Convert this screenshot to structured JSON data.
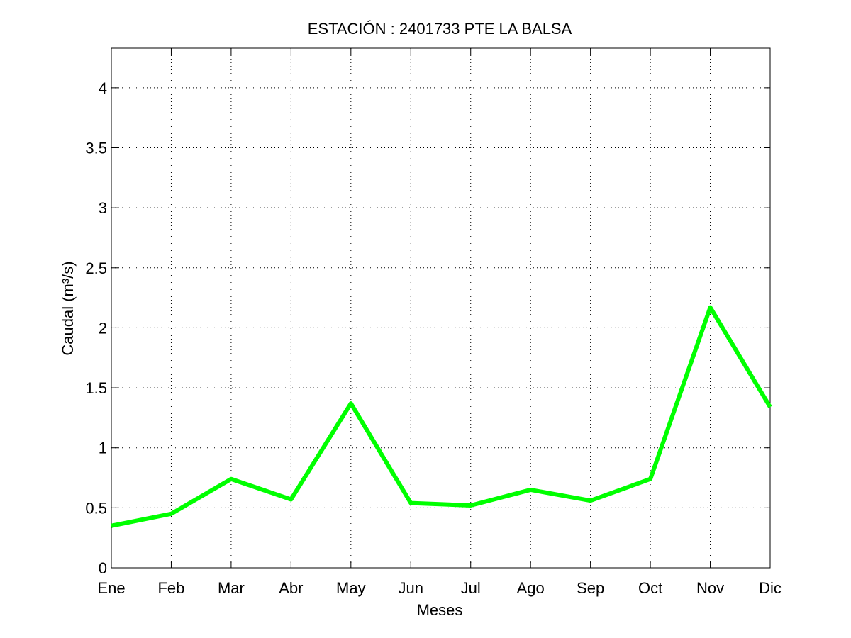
{
  "chart_data": {
    "type": "line",
    "title": "ESTACIÓN :  2401733  PTE LA BALSA",
    "xlabel": "Meses",
    "ylabel": "Caudal (m³/s)",
    "categories": [
      "Ene",
      "Feb",
      "Mar",
      "Abr",
      "May",
      "Jun",
      "Jul",
      "Ago",
      "Sep",
      "Oct",
      "Nov",
      "Dic"
    ],
    "series": [
      {
        "values": [
          0.35,
          0.45,
          0.74,
          0.57,
          1.37,
          0.54,
          0.52,
          0.65,
          0.56,
          0.74,
          2.17,
          1.34
        ],
        "color": "#00ff00"
      }
    ],
    "ylim": [
      0,
      4.33
    ],
    "yticks": [
      0,
      0.5,
      1,
      1.5,
      2,
      2.5,
      3,
      3.5,
      4
    ],
    "ytick_labels": [
      "0",
      "0.5",
      "1",
      "1.5",
      "2",
      "2.5",
      "3",
      "3.5",
      "4"
    ],
    "grid": true,
    "grid_style": "dotted"
  }
}
